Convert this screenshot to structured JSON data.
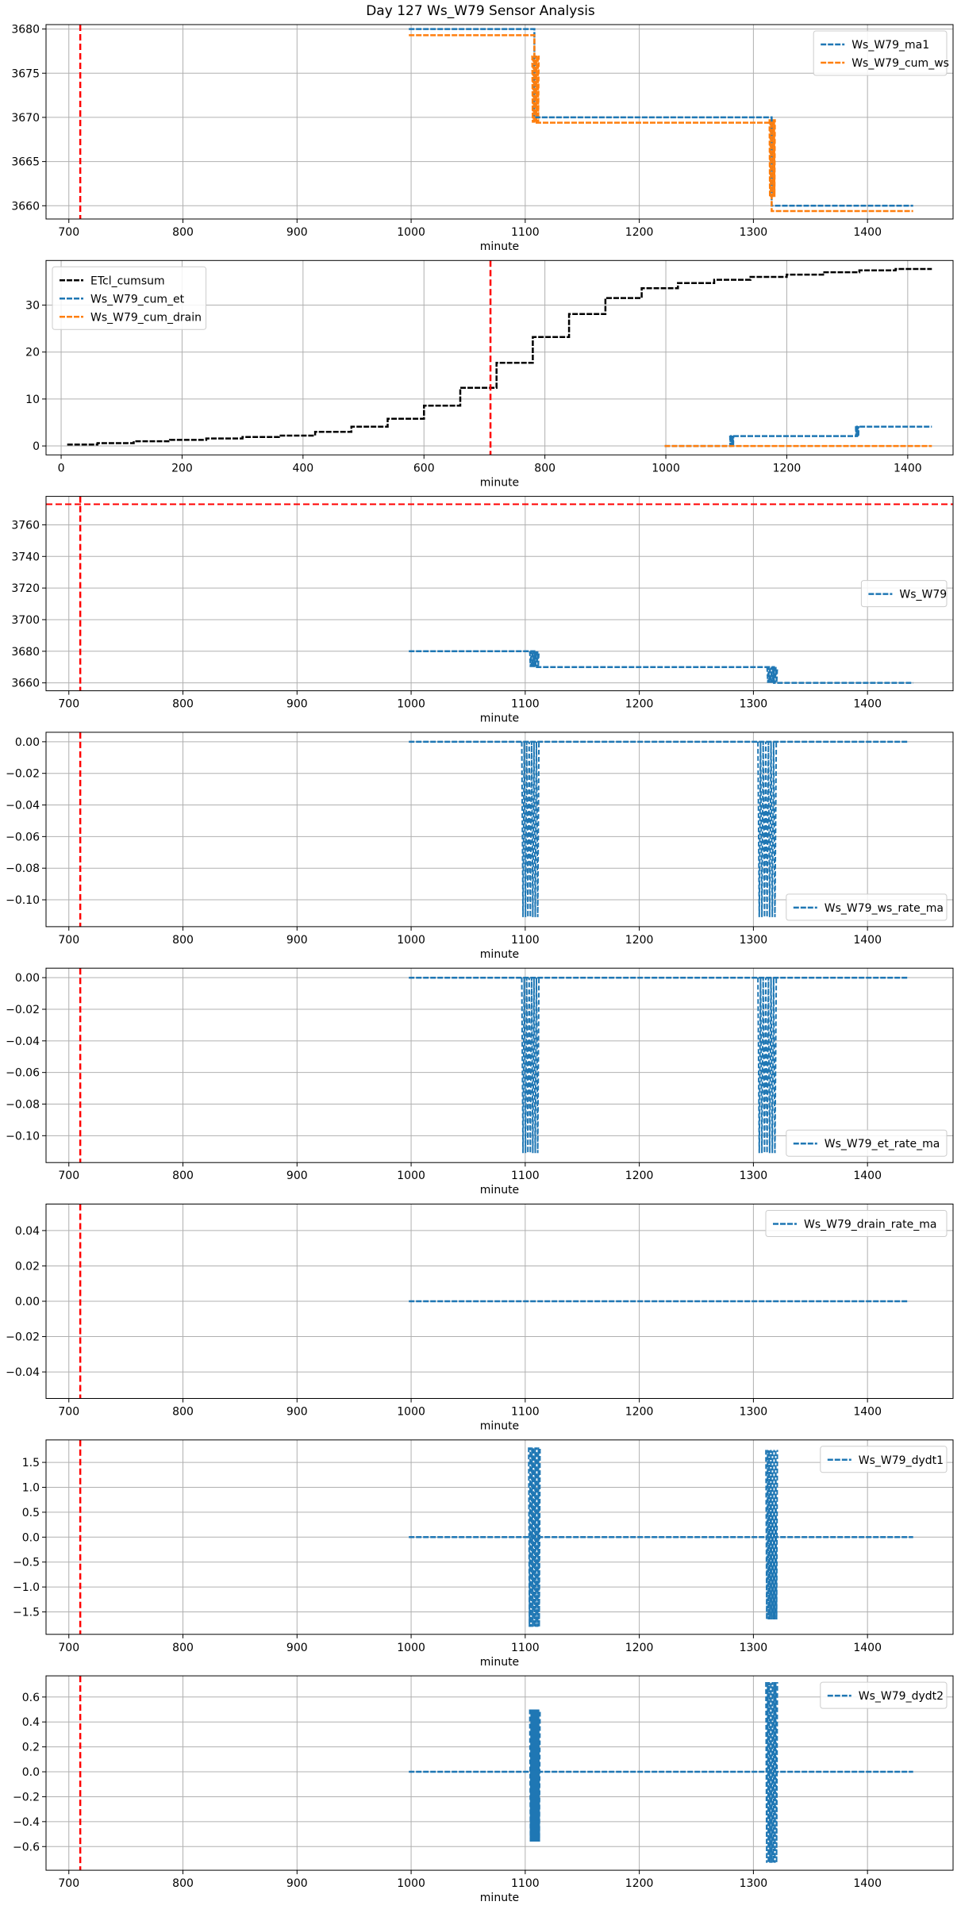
{
  "figure": {
    "title": "Day 127 Ws_W79 Sensor Analysis"
  },
  "colors": {
    "blue": "#1f77b4",
    "orange": "#ff7f0e",
    "black": "#000000",
    "red": "#ff0000",
    "grid": "#b0b0b0"
  },
  "chart_data": [
    {
      "type": "line",
      "xlabel": "minute",
      "xlim": [
        680,
        1475
      ],
      "ylim": [
        3658.5,
        3680.5
      ],
      "xticks": [
        700,
        800,
        900,
        1000,
        1100,
        1200,
        1300,
        1400
      ],
      "yticks": [
        3660,
        3665,
        3670,
        3675,
        3680
      ],
      "grid": true,
      "legend": "top-right",
      "vlines": [
        710
      ],
      "hlines": [],
      "series": [
        {
          "name": "Ws_W79_ma1",
          "color": "#1f77b4",
          "style": "step",
          "x": [
            998,
            1108,
            1108,
            1316,
            1316,
            1440
          ],
          "y": [
            3680,
            3680,
            3670,
            3670,
            3660,
            3660
          ]
        },
        {
          "name": "Ws_W79_cum_ws",
          "color": "#ff7f0e",
          "style": "step",
          "x": [
            998,
            1108,
            1108,
            1316,
            1316,
            1440
          ],
          "y": [
            3679.3,
            3679.3,
            3669.4,
            3669.4,
            3659.4,
            3659.4
          ]
        }
      ],
      "bursts": [
        {
          "color": "#ff7f0e",
          "x0": 1106,
          "x1": 1112,
          "ymin": 3669.4,
          "ymax": 3677
        },
        {
          "color": "#ff7f0e",
          "x0": 1314,
          "x1": 1319,
          "ymin": 3661,
          "ymax": 3669.8
        }
      ]
    },
    {
      "type": "line",
      "xlabel": "minute",
      "xlim": [
        -25,
        1475
      ],
      "ylim": [
        -1.9,
        39.5
      ],
      "xticks": [
        0,
        200,
        400,
        600,
        800,
        1000,
        1200,
        1400
      ],
      "yticks": [
        0,
        10,
        20,
        30
      ],
      "grid": true,
      "legend": "top-left",
      "vlines": [
        710
      ],
      "hlines": [],
      "series": [
        {
          "name": "ETcl_cumsum",
          "color": "#000000",
          "style": "step",
          "x": [
            10,
            60,
            120,
            180,
            240,
            300,
            360,
            420,
            480,
            540,
            600,
            660,
            720,
            780,
            840,
            900,
            960,
            1020,
            1080,
            1140,
            1200,
            1260,
            1320,
            1380,
            1440
          ],
          "y": [
            0.3,
            0.6,
            1.0,
            1.3,
            1.6,
            1.9,
            2.2,
            3.0,
            4.1,
            5.8,
            8.6,
            12.4,
            17.7,
            23.2,
            28.1,
            31.5,
            33.6,
            34.7,
            35.4,
            36.0,
            36.5,
            37.0,
            37.4,
            37.7,
            37.7
          ]
        },
        {
          "name": "Ws_W79_cum_et",
          "color": "#1f77b4",
          "style": "step",
          "x": [
            998,
            1108,
            1108,
            1316,
            1316,
            1440
          ],
          "y": [
            0,
            0,
            2.1,
            2.1,
            4.1,
            4.1
          ]
        },
        {
          "name": "Ws_W79_cum_drain",
          "color": "#ff7f0e",
          "style": "step",
          "x": [
            998,
            1440
          ],
          "y": [
            0,
            0
          ]
        }
      ],
      "bursts": [
        {
          "color": "#1f77b4",
          "x0": 1106,
          "x1": 1112,
          "ymin": 0,
          "ymax": 2.2
        },
        {
          "color": "#1f77b4",
          "x0": 1314,
          "x1": 1319,
          "ymin": 2.0,
          "ymax": 4.2
        }
      ]
    },
    {
      "type": "line",
      "xlabel": "minute",
      "xlim": [
        680,
        1475
      ],
      "ylim": [
        3655,
        3778
      ],
      "xticks": [
        700,
        800,
        900,
        1000,
        1100,
        1200,
        1300,
        1400
      ],
      "yticks": [
        3660,
        3680,
        3700,
        3720,
        3740,
        3760
      ],
      "grid": true,
      "legend": "center-right",
      "vlines": [
        710
      ],
      "hlines": [
        3773
      ],
      "series": [
        {
          "name": "Ws_W79",
          "color": "#1f77b4",
          "style": "step",
          "x": [
            998,
            1108,
            1108,
            1318,
            1318,
            1440
          ],
          "y": [
            3680,
            3680,
            3670,
            3670,
            3660,
            3660
          ]
        }
      ],
      "bursts": [
        {
          "color": "#1f77b4",
          "x0": 1104,
          "x1": 1112,
          "ymin": 3670,
          "ymax": 3680
        },
        {
          "color": "#1f77b4",
          "x0": 1312,
          "x1": 1321,
          "ymin": 3660,
          "ymax": 3670
        }
      ]
    },
    {
      "type": "line",
      "xlabel": "minute",
      "xlim": [
        680,
        1475
      ],
      "ylim": [
        -0.117,
        0.006
      ],
      "xticks": [
        700,
        800,
        900,
        1000,
        1100,
        1200,
        1300,
        1400
      ],
      "yticks": [
        0.0,
        -0.02,
        -0.04,
        -0.06,
        -0.08,
        -0.1
      ],
      "ytick_labels": [
        "0.00",
        "−0.02",
        "−0.04",
        "−0.06",
        "−0.08",
        "−0.10"
      ],
      "grid": true,
      "legend": "bottom-right",
      "vlines": [
        710
      ],
      "hlines": [],
      "series": [
        {
          "name": "Ws_W79_ws_rate_ma",
          "color": "#1f77b4",
          "style": "line",
          "x": [
            998,
            1435
          ],
          "y": [
            0,
            0
          ]
        }
      ],
      "bursts": [
        {
          "color": "#1f77b4",
          "x0": 1097,
          "x1": 1112,
          "ymin": -0.111,
          "ymax": 0
        },
        {
          "color": "#1f77b4",
          "x0": 1304,
          "x1": 1320,
          "ymin": -0.111,
          "ymax": 0
        }
      ]
    },
    {
      "type": "line",
      "xlabel": "minute",
      "xlim": [
        680,
        1475
      ],
      "ylim": [
        -0.117,
        0.006
      ],
      "xticks": [
        700,
        800,
        900,
        1000,
        1100,
        1200,
        1300,
        1400
      ],
      "yticks": [
        0.0,
        -0.02,
        -0.04,
        -0.06,
        -0.08,
        -0.1
      ],
      "ytick_labels": [
        "0.00",
        "−0.02",
        "−0.04",
        "−0.06",
        "−0.08",
        "−0.10"
      ],
      "grid": true,
      "legend": "bottom-right",
      "vlines": [
        710
      ],
      "hlines": [],
      "series": [
        {
          "name": "Ws_W79_et_rate_ma",
          "color": "#1f77b4",
          "style": "line",
          "x": [
            998,
            1435
          ],
          "y": [
            0,
            0
          ]
        }
      ],
      "bursts": [
        {
          "color": "#1f77b4",
          "x0": 1097,
          "x1": 1112,
          "ymin": -0.111,
          "ymax": 0
        },
        {
          "color": "#1f77b4",
          "x0": 1304,
          "x1": 1320,
          "ymin": -0.111,
          "ymax": 0
        }
      ]
    },
    {
      "type": "line",
      "xlabel": "minute",
      "xlim": [
        680,
        1475
      ],
      "ylim": [
        -0.055,
        0.055
      ],
      "xticks": [
        700,
        800,
        900,
        1000,
        1100,
        1200,
        1300,
        1400
      ],
      "yticks": [
        0.04,
        0.02,
        0.0,
        -0.02,
        -0.04
      ],
      "ytick_labels": [
        "0.04",
        "0.02",
        "0.00",
        "−0.02",
        "−0.04"
      ],
      "grid": true,
      "legend": "top-right",
      "vlines": [
        710
      ],
      "hlines": [],
      "series": [
        {
          "name": "Ws_W79_drain_rate_ma",
          "color": "#1f77b4",
          "style": "line",
          "x": [
            998,
            1435
          ],
          "y": [
            0,
            0
          ]
        }
      ],
      "bursts": []
    },
    {
      "type": "line",
      "xlabel": "minute",
      "xlim": [
        680,
        1475
      ],
      "ylim": [
        -1.95,
        1.95
      ],
      "xticks": [
        700,
        800,
        900,
        1000,
        1100,
        1200,
        1300,
        1400
      ],
      "yticks": [
        1.5,
        1.0,
        0.5,
        0.0,
        -0.5,
        -1.0,
        -1.5
      ],
      "ytick_labels": [
        "1.5",
        "1.0",
        "0.5",
        "0.0",
        "−0.5",
        "−1.0",
        "−1.5"
      ],
      "grid": true,
      "legend": "top-right",
      "vlines": [
        710
      ],
      "hlines": [],
      "series": [
        {
          "name": "Ws_W79_dydt1",
          "color": "#1f77b4",
          "style": "line",
          "x": [
            998,
            1440
          ],
          "y": [
            0,
            0
          ]
        }
      ],
      "bursts": [
        {
          "color": "#1f77b4",
          "x0": 1103,
          "x1": 1113,
          "ymin": -1.8,
          "ymax": 1.8
        },
        {
          "color": "#1f77b4",
          "x0": 1311,
          "x1": 1321,
          "ymin": -1.65,
          "ymax": 1.75
        }
      ]
    },
    {
      "type": "line",
      "xlabel": "minute",
      "xlim": [
        680,
        1475
      ],
      "ylim": [
        -0.79,
        0.77
      ],
      "xticks": [
        700,
        800,
        900,
        1000,
        1100,
        1200,
        1300,
        1400
      ],
      "yticks": [
        0.6,
        0.4,
        0.2,
        0.0,
        -0.2,
        -0.4,
        -0.6
      ],
      "ytick_labels": [
        "0.6",
        "0.4",
        "0.2",
        "0.0",
        "−0.2",
        "−0.4",
        "−0.6"
      ],
      "grid": true,
      "legend": "top-right",
      "vlines": [
        710
      ],
      "hlines": [],
      "series": [
        {
          "name": "Ws_W79_dydt2",
          "color": "#1f77b4",
          "style": "line",
          "x": [
            998,
            1440
          ],
          "y": [
            0,
            0
          ]
        }
      ],
      "bursts": [
        {
          "color": "#1f77b4",
          "x0": 1104,
          "x1": 1113,
          "ymin": -0.56,
          "ymax": 0.5
        },
        {
          "color": "#1f77b4",
          "x0": 1311,
          "x1": 1321,
          "ymin": -0.73,
          "ymax": 0.72
        }
      ]
    }
  ]
}
